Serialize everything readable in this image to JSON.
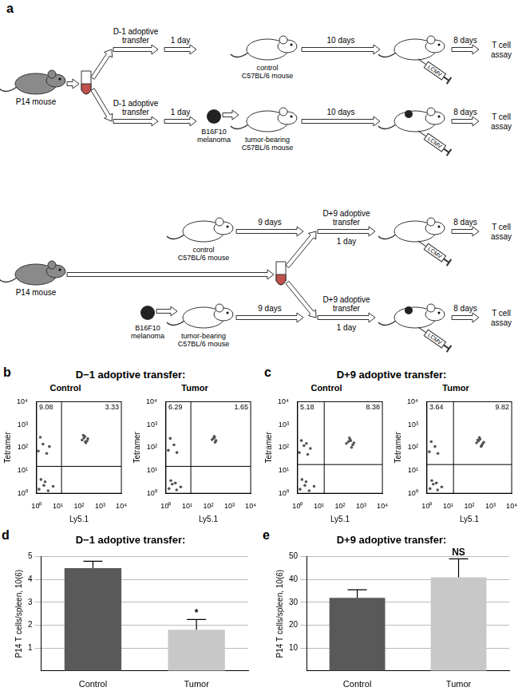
{
  "diagram": {
    "label": "a",
    "top": {
      "donor": "P14 mouse",
      "rows": [
        {
          "transfer": "D-1 adoptive transfer",
          "transfer_delay": "1 day",
          "host": "control C57BL/6 mouse",
          "wait": "10 days",
          "infection": "LCMV",
          "assay_delay": "8 days",
          "assay": "T cell assay"
        },
        {
          "transfer": "D-1 adoptive transfer",
          "transfer_delay": "1 day",
          "tumor": "B16F10 melanoma",
          "host": "tumor-bearing C57BL/6 mouse",
          "wait": "10 days",
          "infection": "LCMV",
          "assay_delay": "8 days",
          "assay": "T cell assay"
        }
      ]
    },
    "bottom": {
      "donor": "P14 mouse",
      "rows": [
        {
          "host": "control C57BL/6 mouse",
          "wait": "9 days",
          "transfer": "D+9 adoptive transfer",
          "transfer_delay": "1 day",
          "infection": "LCMV",
          "assay_delay": "8 days",
          "assay": "T cell assay"
        },
        {
          "tumor": "B16F10 melanoma",
          "host": "tumor-bearing C57BL/6 mouse",
          "wait": "9 days",
          "transfer": "D+9 adoptive transfer",
          "transfer_delay": "1 day",
          "infection": "LCMV",
          "assay_delay": "8 days",
          "assay": "T cell assay"
        }
      ]
    }
  },
  "chart_data": [
    {
      "panel": "b",
      "type": "scatter",
      "title": "D−1 adoptive transfer:",
      "x_label": "Ly5.1",
      "y_label": "Tetramer",
      "log": true,
      "xlim": [
        1,
        10000
      ],
      "ylim": [
        1,
        10000
      ],
      "xticks": [
        {
          "value": 1,
          "label": "10⁰"
        },
        {
          "value": 10,
          "label": "10¹"
        },
        {
          "value": 100,
          "label": "10²"
        },
        {
          "value": 1000,
          "label": "10³"
        },
        {
          "value": 10000,
          "label": "10⁴"
        }
      ],
      "yticks": [
        {
          "value": 1,
          "label": "10⁰"
        },
        {
          "value": 10,
          "label": "10¹"
        },
        {
          "value": 100,
          "label": "10²"
        },
        {
          "value": 1000,
          "label": "10³"
        },
        {
          "value": 10000,
          "label": "10⁴"
        }
      ],
      "color": "#555555",
      "plots": [
        {
          "subtitle": "Control",
          "gates": {
            "x": 15,
            "y": 15
          },
          "quadrants": {
            "upper_left": 9.08,
            "upper_right": 3.33
          },
          "points": {
            "x": [
              1.3,
              2.2,
              3.5,
              1.6,
              6,
              2.5,
              1.2,
              2,
              3,
              1.5,
              4,
              140,
              190,
              240,
              170,
              210,
              160,
              260,
              200
            ],
            "y": [
              1.5,
              2.2,
              1.3,
              4,
              2,
              3.2,
              70,
              140,
              55,
              280,
              110,
              210,
              300,
              190,
              260,
              160,
              340,
              240,
              180
            ]
          }
        },
        {
          "subtitle": "Tumor",
          "gates": {
            "x": 15,
            "y": 15
          },
          "quadrants": {
            "upper_left": 6.29,
            "upper_right": 1.65
          },
          "points": {
            "x": [
              1.4,
              2,
              3.2,
              1.7,
              5,
              2.8,
              1.3,
              2.4,
              3.3,
              1.6,
              150,
              200,
              230,
              175,
              210,
              190
            ],
            "y": [
              1.6,
              2.5,
              1.4,
              3.6,
              1.9,
              2.8,
              75,
              130,
              60,
              250,
              220,
              280,
              200,
              250,
              170,
              310
            ]
          }
        }
      ]
    },
    {
      "panel": "c",
      "type": "scatter",
      "title": "D+9 adoptive transfer:",
      "x_label": "Ly5.1",
      "y_label": "Tetramer",
      "log": true,
      "xlim": [
        1,
        10000
      ],
      "ylim": [
        1,
        10000
      ],
      "xticks": [
        {
          "value": 1,
          "label": "10⁰"
        },
        {
          "value": 10,
          "label": "10¹"
        },
        {
          "value": 100,
          "label": "10²"
        },
        {
          "value": 1000,
          "label": "10³"
        },
        {
          "value": 10000,
          "label": "10⁴"
        }
      ],
      "yticks": [
        {
          "value": 1,
          "label": "10⁰"
        },
        {
          "value": 10,
          "label": "10¹"
        },
        {
          "value": 100,
          "label": "10²"
        },
        {
          "value": 1000,
          "label": "10³"
        },
        {
          "value": 10000,
          "label": "10⁴"
        }
      ],
      "color": "#555555",
      "plots": [
        {
          "subtitle": "Control",
          "gates": {
            "x": 18,
            "y": 18
          },
          "quadrants": {
            "upper_left": 5.18,
            "upper_right": 8.38
          },
          "points": {
            "x": [
              1.3,
              2.2,
              3.5,
              1.6,
              6,
              2.5,
              1.2,
              2,
              3,
              1.5,
              4,
              2.6,
              200,
              300,
              400,
              250,
              350,
              280,
              450,
              320
            ],
            "y": [
              1.5,
              2.2,
              1.3,
              4,
              2,
              3.2,
              60,
              120,
              50,
              200,
              90,
              150,
              150,
              220,
              130,
              180,
              100,
              260,
              160,
              200
            ]
          }
        },
        {
          "subtitle": "Tumor",
          "gates": {
            "x": 18,
            "y": 18
          },
          "quadrants": {
            "upper_left": 3.64,
            "upper_right": 9.82
          },
          "points": {
            "x": [
              1.4,
              2,
              3.2,
              1.7,
              5,
              2.8,
              1.3,
              2.4,
              3.3,
              1.6,
              220,
              320,
              420,
              270,
              360,
              300,
              480,
              380,
              250
            ],
            "y": [
              1.6,
              2.5,
              1.4,
              3.6,
              1.9,
              2.8,
              65,
              110,
              55,
              180,
              160,
              230,
              140,
              190,
              110,
              270,
              170,
              120,
              210
            ]
          }
        }
      ]
    },
    {
      "panel": "d",
      "type": "bar",
      "title": "D−1 adoptive transfer:",
      "y_label": "P14 T cells/spleen, 10(6)",
      "categories": [
        "Control",
        "Tumor"
      ],
      "values": [
        4.5,
        1.8
      ],
      "errors": [
        0.3,
        0.45
      ],
      "colors": [
        "#595959",
        "#c8c8c8"
      ],
      "ylim": [
        0,
        5
      ],
      "yticks": [
        1,
        2,
        3,
        4,
        5
      ],
      "grid": true,
      "annotations": [
        {
          "category": "Tumor",
          "text": "*"
        }
      ]
    },
    {
      "panel": "e",
      "type": "bar",
      "title": "D+9 adoptive transfer:",
      "y_label": "P14 T cells/spleen, 10(6)",
      "categories": [
        "Control",
        "Tumor"
      ],
      "values": [
        32,
        41
      ],
      "errors": [
        3.5,
        8
      ],
      "colors": [
        "#595959",
        "#c8c8c8"
      ],
      "ylim": [
        0,
        50
      ],
      "yticks": [
        10,
        20,
        30,
        40,
        50
      ],
      "grid": true,
      "annotations": [
        {
          "category": "Tumor",
          "text": "NS"
        }
      ]
    }
  ]
}
